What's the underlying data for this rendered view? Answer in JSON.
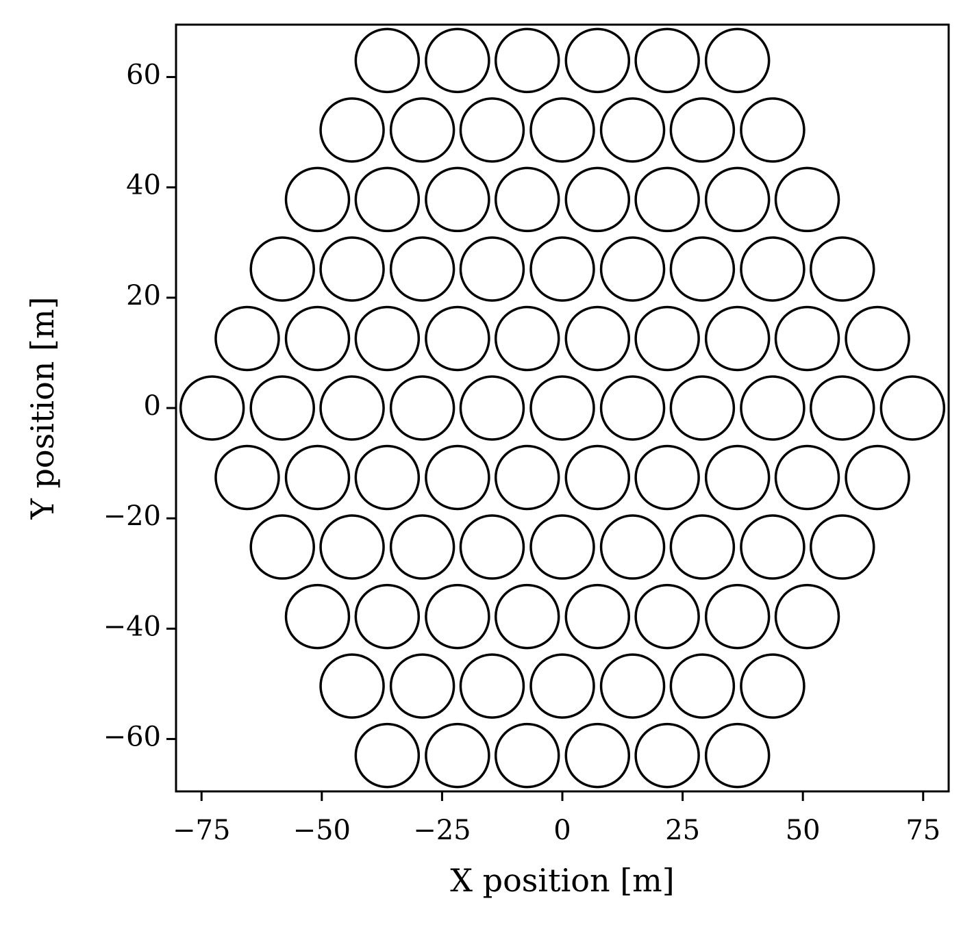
{
  "chart_data": {
    "type": "scatter",
    "xlabel": "X position [m]",
    "ylabel": "Y position [m]",
    "x": [
      -36.4,
      -21.8,
      -7.3,
      7.3,
      21.8,
      36.4,
      -43.7,
      -29.1,
      -14.6,
      0,
      14.6,
      29.1,
      43.7,
      -50.9,
      -36.4,
      -21.8,
      -7.3,
      7.3,
      21.8,
      36.4,
      50.9,
      -58.2,
      -43.7,
      -29.1,
      -14.6,
      0,
      14.6,
      29.1,
      43.7,
      58.2,
      -65.5,
      -50.9,
      -36.4,
      -21.8,
      -7.3,
      7.3,
      21.8,
      36.4,
      50.9,
      65.5,
      -72.8,
      -58.2,
      -43.7,
      -29.1,
      -14.6,
      0,
      14.6,
      29.1,
      43.7,
      58.2,
      72.8,
      -65.5,
      -50.9,
      -36.4,
      -21.8,
      -7.3,
      7.3,
      21.8,
      36.4,
      50.9,
      65.5,
      -58.2,
      -43.7,
      -29.1,
      -14.6,
      0,
      14.6,
      29.1,
      43.7,
      58.2,
      -50.9,
      -36.4,
      -21.8,
      -7.3,
      7.3,
      21.8,
      36.4,
      50.9,
      -43.7,
      -29.1,
      -14.6,
      0,
      14.6,
      29.1,
      43.7,
      -36.4,
      -21.8,
      -7.3,
      7.3,
      21.8,
      36.4
    ],
    "y": [
      63,
      63,
      63,
      63,
      63,
      63,
      50.4,
      50.4,
      50.4,
      50.4,
      50.4,
      50.4,
      50.4,
      37.8,
      37.8,
      37.8,
      37.8,
      37.8,
      37.8,
      37.8,
      37.8,
      25.2,
      25.2,
      25.2,
      25.2,
      25.2,
      25.2,
      25.2,
      25.2,
      25.2,
      12.6,
      12.6,
      12.6,
      12.6,
      12.6,
      12.6,
      12.6,
      12.6,
      12.6,
      12.6,
      0,
      0,
      0,
      0,
      0,
      0,
      0,
      0,
      0,
      0,
      0,
      -12.6,
      -12.6,
      -12.6,
      -12.6,
      -12.6,
      -12.6,
      -12.6,
      -12.6,
      -12.6,
      -12.6,
      -25.2,
      -25.2,
      -25.2,
      -25.2,
      -25.2,
      -25.2,
      -25.2,
      -25.2,
      -25.2,
      -37.8,
      -37.8,
      -37.8,
      -37.8,
      -37.8,
      -37.8,
      -37.8,
      -37.8,
      -50.4,
      -50.4,
      -50.4,
      -50.4,
      -50.4,
      -50.4,
      -50.4,
      -63,
      -63,
      -63,
      -63,
      -63,
      -63
    ],
    "color": "#000000",
    "xlim": [
      -80.3,
      80.3
    ],
    "ylim": [
      -69.5,
      69.5
    ],
    "xticks": [
      {
        "value": -75,
        "label": "−75"
      },
      {
        "value": -50,
        "label": "−50"
      },
      {
        "value": -25,
        "label": "−25"
      },
      0,
      25,
      50,
      75
    ],
    "yticks": [
      {
        "value": -60,
        "label": "−60"
      },
      {
        "value": -40,
        "label": "−40"
      },
      {
        "value": -20,
        "label": "−20"
      },
      0,
      20,
      40,
      60
    ],
    "grid": false
  }
}
